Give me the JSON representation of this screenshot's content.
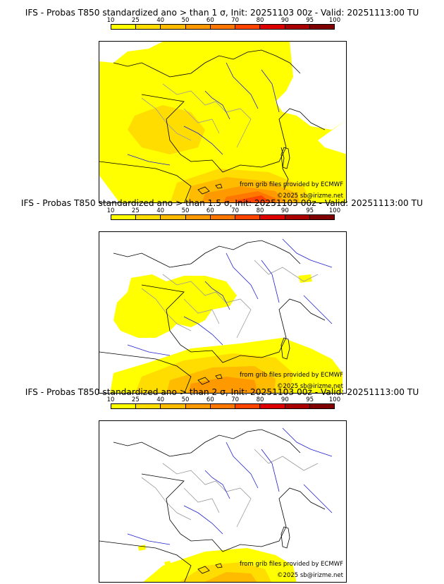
{
  "panels": [
    {
      "title": "IFS - Probas T850  standardized ano > than 1 σ, Init: 20251103 00z - Valid: 20251113:00 TU",
      "level": "1"
    },
    {
      "title": "IFS - Probas T850  standardized ano > than 1.5 σ, Init: 20251103 00z - Valid: 20251113:00 TU",
      "level": "1.5"
    },
    {
      "title": "IFS - Probas T850  standardized ano > than 2 σ, Init: 20251103 00z - Valid: 20251113:00 TU",
      "level": "2"
    }
  ],
  "colorbar": {
    "ticks": [
      "10",
      "25",
      "40",
      "50",
      "60",
      "70",
      "80",
      "90",
      "95",
      "100"
    ],
    "colors": [
      "#ffff00",
      "#ffdd00",
      "#ffbb00",
      "#ff9900",
      "#ff7700",
      "#ff4400",
      "#dd0000",
      "#aa0000",
      "#800000"
    ]
  },
  "credits": {
    "grib": "from grib files provided by ECMWF",
    "copyright": "©2025 sb@irizme.net"
  },
  "colors": {
    "coast": "#000000",
    "rivers": "#1f1fd0",
    "borders": "#9a9a9a"
  }
}
